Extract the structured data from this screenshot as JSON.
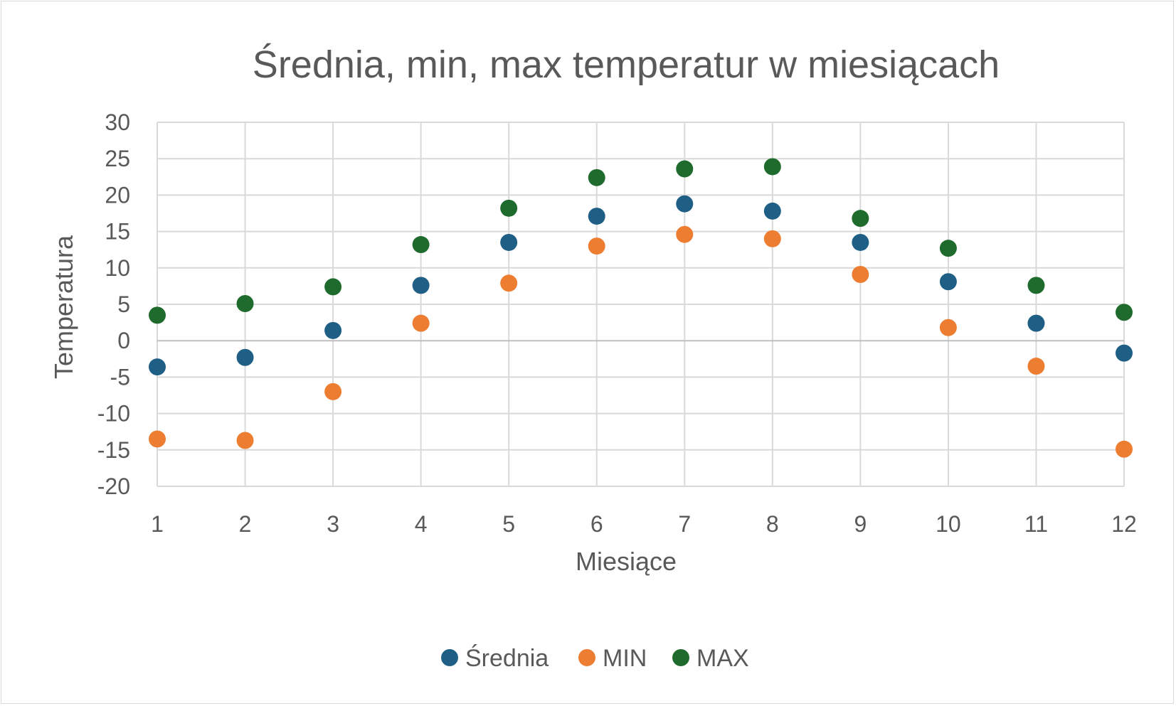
{
  "chart_data": {
    "type": "scatter",
    "title": "Średnia, min, max temperatur w miesiącach",
    "xlabel": "Miesiące",
    "ylabel": "Temperatura",
    "x": [
      1,
      2,
      3,
      4,
      5,
      6,
      7,
      8,
      9,
      10,
      11,
      12
    ],
    "xlim": [
      1,
      12
    ],
    "ylim": [
      -20,
      30
    ],
    "y_ticks": [
      30,
      25,
      20,
      15,
      10,
      5,
      0,
      -5,
      -10,
      -15,
      -20
    ],
    "y_tick_labels": [
      "30",
      "25",
      "20",
      "15",
      "10",
      "5",
      "0",
      "-5",
      "-10",
      "-15",
      "-20"
    ],
    "x_tick_labels": [
      "1",
      "2",
      "3",
      "4",
      "5",
      "6",
      "7",
      "8",
      "9",
      "10",
      "11",
      "12"
    ],
    "grid": true,
    "legend_position": "bottom",
    "series": [
      {
        "name": "Średnia",
        "color": "#1f5f86",
        "values": [
          -3.6,
          -2.3,
          1.4,
          7.6,
          13.5,
          17.1,
          18.8,
          17.8,
          13.5,
          8.1,
          2.4,
          -1.7
        ]
      },
      {
        "name": "MIN",
        "color": "#ed7d31",
        "values": [
          -13.5,
          -13.7,
          -7.0,
          2.4,
          7.9,
          13.0,
          14.6,
          14.0,
          9.1,
          1.8,
          -3.5,
          -14.9
        ]
      },
      {
        "name": "MAX",
        "color": "#1e6b2d",
        "values": [
          3.5,
          5.1,
          7.4,
          13.2,
          18.2,
          22.4,
          23.6,
          23.9,
          16.8,
          12.7,
          7.6,
          3.9
        ]
      }
    ]
  }
}
